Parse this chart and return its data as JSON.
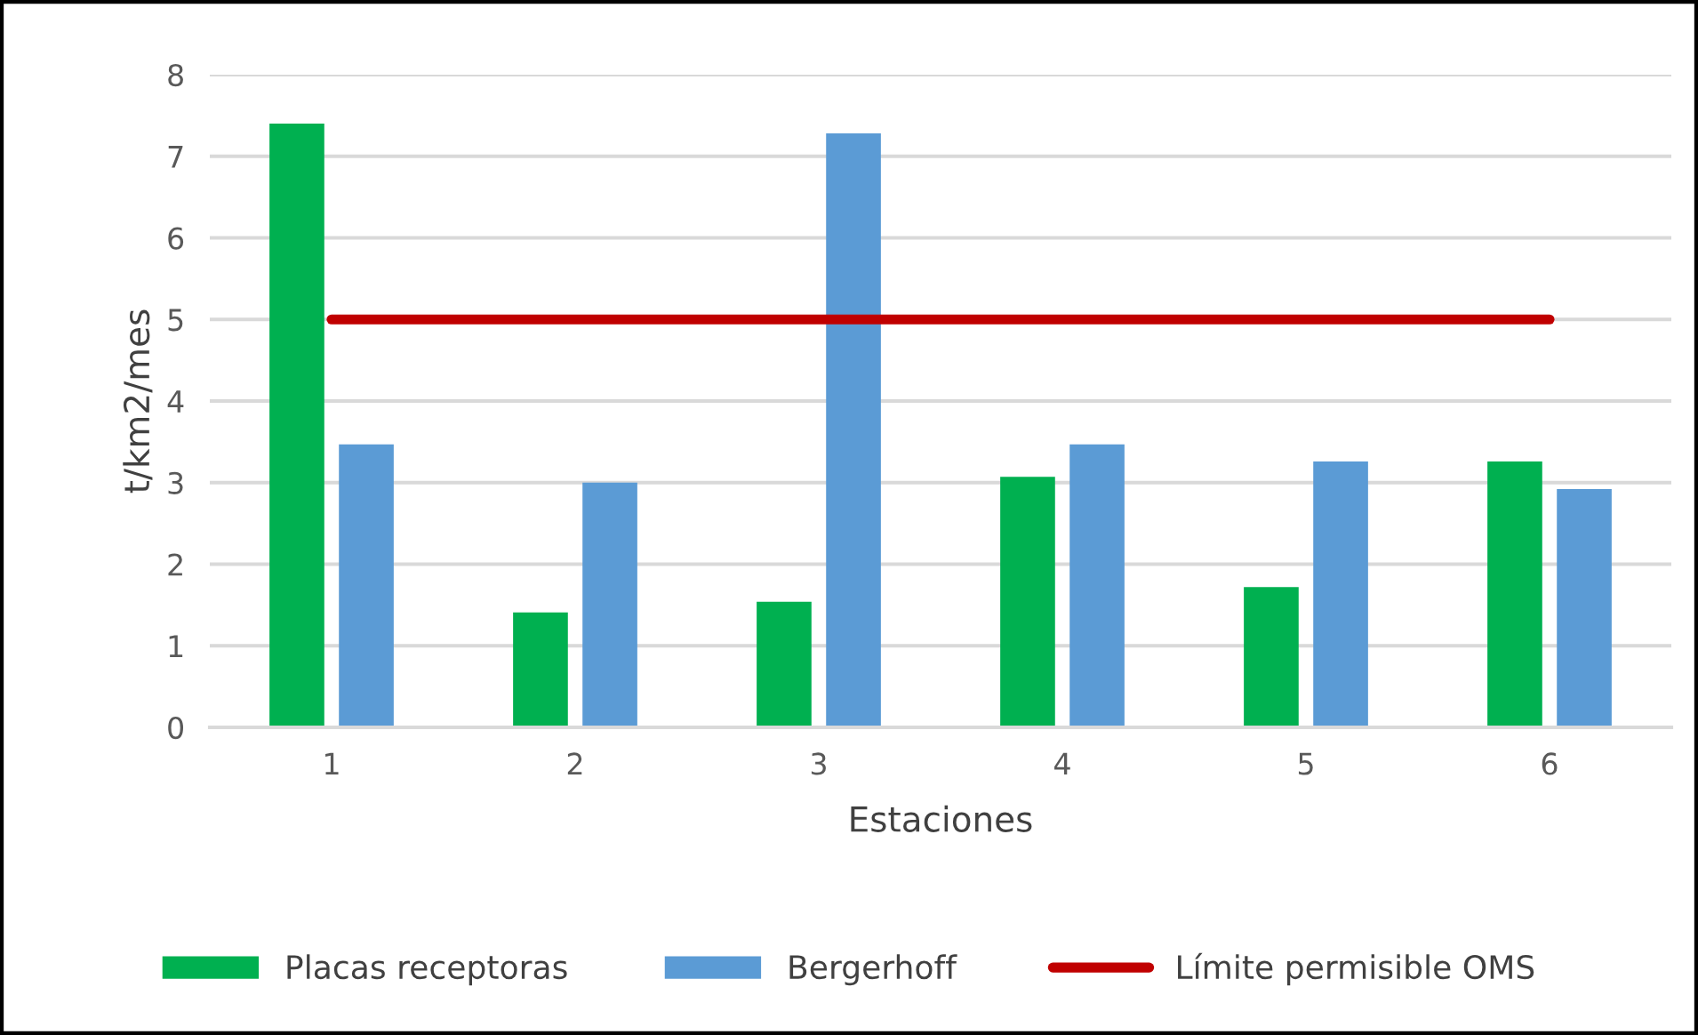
{
  "chart_data": {
    "type": "bar",
    "xlabel": "Estaciones",
    "ylabel": "t/km2/mes",
    "categories": [
      "1",
      "2",
      "3",
      "4",
      "5",
      "6"
    ],
    "series": [
      {
        "name": "Placas receptoras",
        "color": "#00b050",
        "values": [
          7.4,
          1.41,
          1.54,
          3.07,
          1.72,
          3.26
        ]
      },
      {
        "name": "Bergerhoff",
        "color": "#5b9bd5",
        "values": [
          3.47,
          3.0,
          7.28,
          3.47,
          3.26,
          2.92
        ]
      },
      {
        "name": "Límite permisible OMS",
        "color": "#c00000",
        "type": "line",
        "values": [
          5,
          5,
          5,
          5,
          5,
          5
        ]
      }
    ],
    "ylim": [
      0,
      8
    ],
    "yticks": [
      0,
      1,
      2,
      3,
      4,
      5,
      6,
      7,
      8
    ],
    "grid": "y",
    "legend": "bottom",
    "marker": "none",
    "line_style": "solid"
  }
}
